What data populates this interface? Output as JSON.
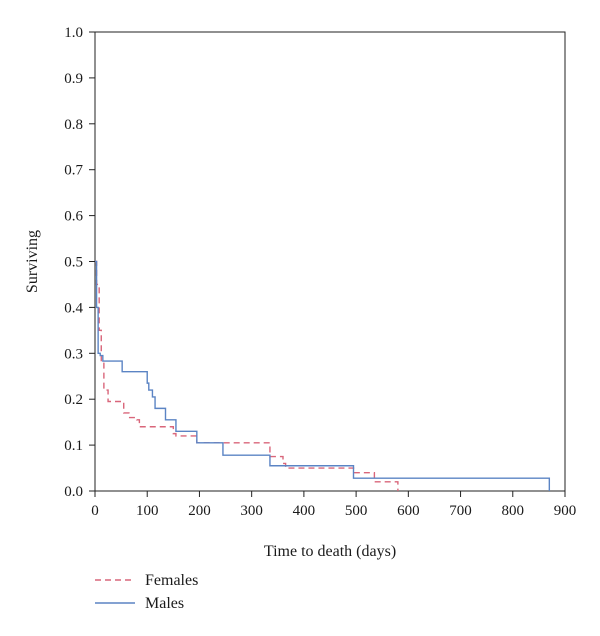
{
  "chart_data": {
    "type": "line",
    "step": true,
    "title": "",
    "xlabel": "Time to death (days)",
    "ylabel": "Surviving",
    "xlim": [
      0,
      900
    ],
    "ylim": [
      0,
      1.0
    ],
    "x_ticks": [
      "0",
      "100",
      "200",
      "300",
      "400",
      "500",
      "600",
      "700",
      "800",
      "900"
    ],
    "y_ticks": [
      "0.0",
      "0.1",
      "0.2",
      "0.3",
      "0.4",
      "0.5",
      "0.6",
      "0.7",
      "0.8",
      "0.9",
      "1.0"
    ],
    "grid": false,
    "legend_position": "below-left",
    "series": [
      {
        "name": "Females",
        "color": "#d9667a",
        "dash": "dashed",
        "x": [
          0,
          3,
          8,
          12,
          17,
          25,
          55,
          65,
          80,
          85,
          100,
          150,
          155,
          190,
          195,
          335,
          340,
          360,
          365,
          490,
          495,
          530,
          535,
          575,
          580
        ],
        "y": [
          0.5,
          0.45,
          0.35,
          0.28,
          0.22,
          0.195,
          0.17,
          0.16,
          0.155,
          0.14,
          0.14,
          0.125,
          0.12,
          0.12,
          0.105,
          0.075,
          0.075,
          0.06,
          0.05,
          0.05,
          0.04,
          0.04,
          0.02,
          0.02,
          0.0
        ]
      },
      {
        "name": "Males",
        "color": "#5b84c4",
        "dash": "solid",
        "x": [
          0,
          3,
          6,
          10,
          15,
          52,
          100,
          103,
          110,
          115,
          125,
          135,
          155,
          195,
          245,
          335,
          495,
          870
        ],
        "y": [
          0.5,
          0.4,
          0.3,
          0.295,
          0.283,
          0.26,
          0.235,
          0.22,
          0.205,
          0.18,
          0.18,
          0.155,
          0.13,
          0.105,
          0.078,
          0.055,
          0.028,
          0.0
        ]
      }
    ]
  }
}
